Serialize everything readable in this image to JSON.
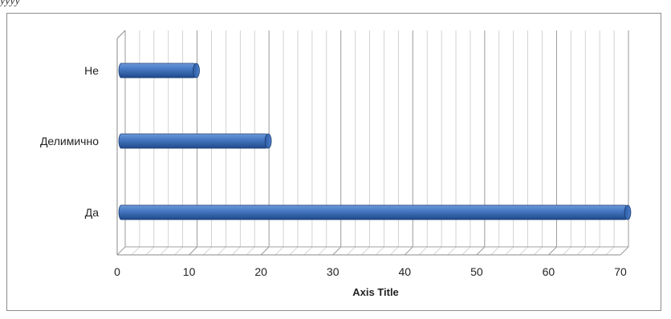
{
  "header_text": "уууу",
  "chart_data": {
    "type": "bar",
    "orientation": "horizontal",
    "style": "3d-cylinder",
    "categories": [
      "Не",
      "Делимично",
      "Да"
    ],
    "values": [
      11,
      21,
      71
    ],
    "title": "",
    "xlabel": "Axis Title",
    "ylabel": "",
    "xlim": [
      0,
      70
    ],
    "x_ticks": [
      0,
      10,
      20,
      30,
      40,
      50,
      60,
      70
    ],
    "grid": "vertical major and minor",
    "legend": "none",
    "bar_color": "#3d6fb8"
  }
}
